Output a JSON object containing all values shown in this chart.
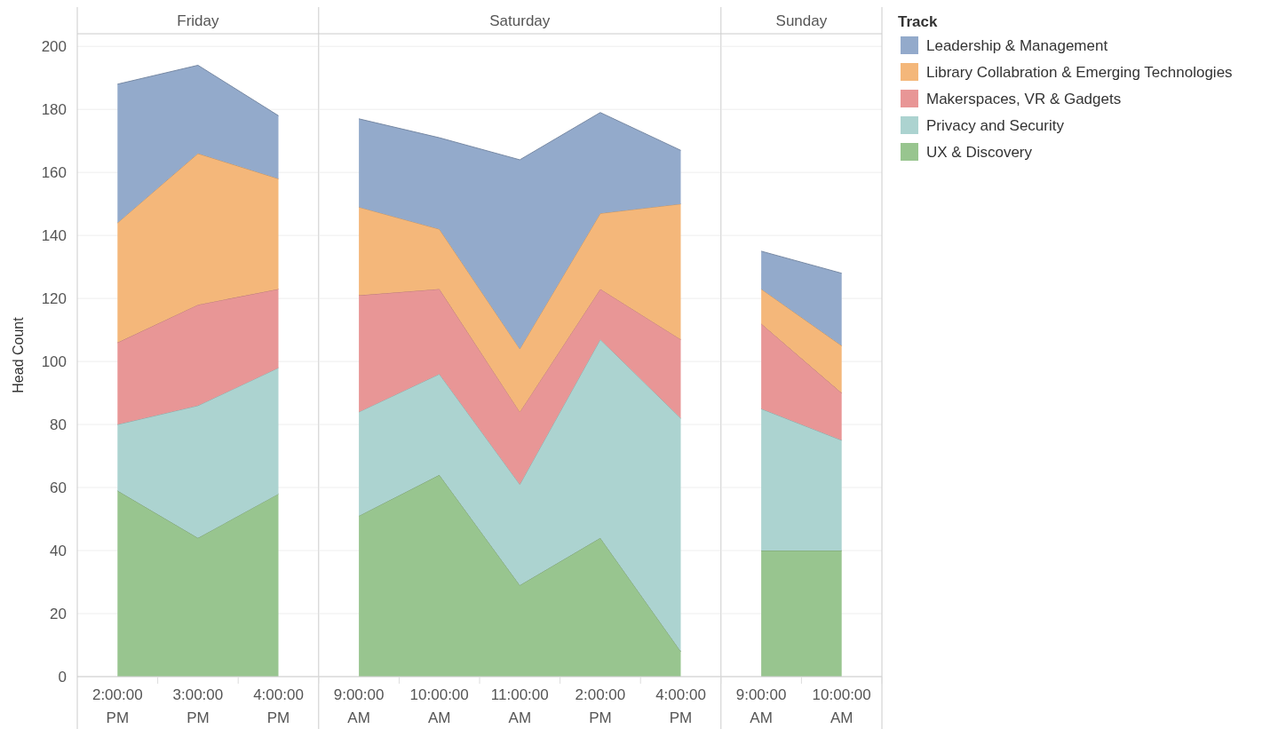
{
  "chart_data": [
    {
      "type": "area",
      "stacked": true,
      "title": "Friday",
      "ylabel": "Head Count",
      "categories": [
        "2:00:00 PM",
        "3:00:00 PM",
        "4:00:00 PM"
      ],
      "ylim": [
        0,
        204
      ],
      "yticks": [
        0,
        20,
        40,
        60,
        80,
        100,
        120,
        140,
        160,
        180,
        200
      ],
      "grid": "y",
      "series": [
        {
          "color": "#98c58f",
          "values": [
            59,
            44,
            58
          ]
        },
        {
          "color": "#acd3d0",
          "values": [
            21,
            42,
            40
          ]
        },
        {
          "color": "#e89696",
          "values": [
            26,
            32,
            25
          ]
        },
        {
          "color": "#f4b77a",
          "values": [
            38,
            48,
            35
          ]
        },
        {
          "color": "#93aacb",
          "values": [
            44,
            28,
            20
          ]
        }
      ]
    },
    {
      "type": "area",
      "stacked": true,
      "title": "Saturday",
      "categories": [
        "9:00:00 AM",
        "10:00:00 AM",
        "11:00:00 AM",
        "2:00:00 PM",
        "4:00:00 PM"
      ],
      "ylim": [
        0,
        204
      ],
      "yticks": [
        0,
        20,
        40,
        60,
        80,
        100,
        120,
        140,
        160,
        180,
        200
      ],
      "grid": "y",
      "tick_labels": "x",
      "series": [
        {
          "color": "#98c58f",
          "values": [
            51,
            64,
            29,
            44,
            8
          ]
        },
        {
          "color": "#acd3d0",
          "values": [
            33,
            32,
            32,
            63,
            74
          ]
        },
        {
          "color": "#e89696",
          "values": [
            37,
            27,
            23,
            16,
            25
          ]
        },
        {
          "color": "#f4b77a",
          "values": [
            28,
            19,
            20,
            24,
            43
          ]
        },
        {
          "color": "#93aacb",
          "values": [
            28,
            29,
            60,
            32,
            17
          ]
        }
      ]
    },
    {
      "type": "area",
      "stacked": true,
      "title": "Sunday",
      "categories": [
        "9:00:00 AM",
        "10:00:00 AM"
      ],
      "ylim": [
        0,
        204
      ],
      "yticks": [
        0,
        20,
        40,
        60,
        80,
        100,
        120,
        140,
        160,
        180,
        200
      ],
      "grid": "y",
      "tick_labels": "x",
      "legend": "right",
      "legend_title": "Track",
      "series": [
        {
          "name": "UX & Discovery",
          "color": "#98c58f",
          "values": [
            40,
            40
          ]
        },
        {
          "name": "Privacy and Security",
          "color": "#acd3d0",
          "values": [
            45,
            35
          ]
        },
        {
          "name": "Makerspaces, VR & Gadgets",
          "color": "#e89696",
          "values": [
            27,
            15
          ]
        },
        {
          "name": "Library Collabration & Emerging Technologies",
          "color": "#f4b77a",
          "values": [
            11,
            15
          ]
        },
        {
          "name": "Leadership & Management",
          "color": "#93aacb",
          "values": [
            12,
            23
          ]
        }
      ]
    }
  ]
}
